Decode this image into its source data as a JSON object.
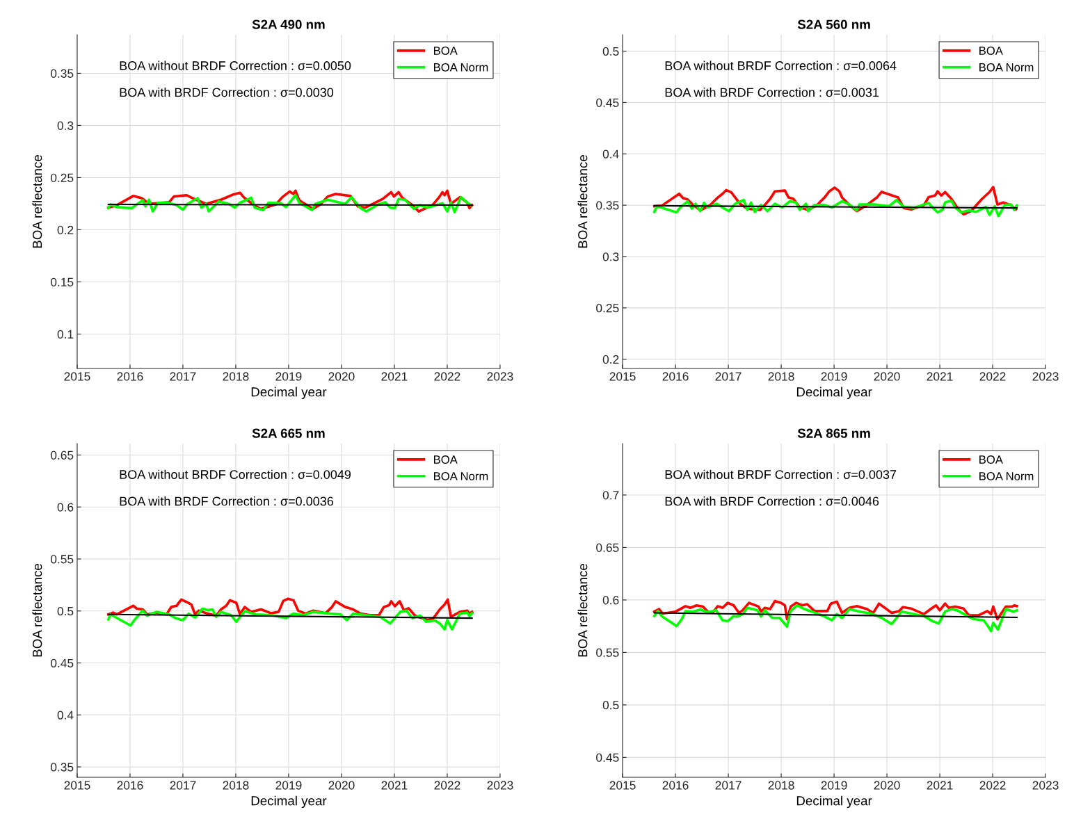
{
  "chart_data": [
    {
      "type": "line",
      "title": "S2A 490 nm",
      "xlabel": "Decimal year",
      "ylabel": "BOA reflectance",
      "xlim": [
        2015,
        2023
      ],
      "xticks": [
        2015,
        2016,
        2017,
        2018,
        2019,
        2020,
        2021,
        2022,
        2023
      ],
      "ylim": [
        0.067,
        0.387
      ],
      "yticks": [
        0.1,
        0.15,
        0.2,
        0.25,
        0.3,
        0.35
      ],
      "grid": true,
      "legend": "top right",
      "annotations": [
        "BOA without BRDF Correction : σ=0.0050",
        "BOA with BRDF Correction : σ=0.0030"
      ],
      "series": [
        {
          "name": "BOA",
          "color": "#ff0000",
          "x": [
            2015.59,
            2015.75,
            2016.06,
            2016.22,
            2016.36,
            2016.74,
            2016.83,
            2016.97,
            2017.07,
            2017.25,
            2017.44,
            2017.72,
            2017.94,
            2018.08,
            2018.15,
            2018.31,
            2018.47,
            2018.76,
            2018.88,
            2019.02,
            2019.09,
            2019.13,
            2019.2,
            2019.46,
            2019.6,
            2019.74,
            2019.89,
            2020.17,
            2020.31,
            2020.45,
            2020.78,
            2020.94,
            2020.99,
            2021.08,
            2021.15,
            2021.34,
            2021.46,
            2021.72,
            2021.84,
            2021.91,
            2021.95,
            2022.0,
            2022.07,
            2022.24,
            2022.38,
            2022.42,
            2022.47
          ],
          "values": [
            0.2212,
            0.2236,
            0.2324,
            0.2303,
            0.2248,
            0.2264,
            0.2319,
            0.2326,
            0.2331,
            0.2288,
            0.2248,
            0.2288,
            0.2336,
            0.2355,
            0.2312,
            0.2248,
            0.22,
            0.2243,
            0.2312,
            0.2367,
            0.2343,
            0.2374,
            0.2283,
            0.22,
            0.2243,
            0.2319,
            0.2343,
            0.2324,
            0.2224,
            0.2212,
            0.2295,
            0.236,
            0.2319,
            0.236,
            0.2307,
            0.2236,
            0.2176,
            0.2236,
            0.2307,
            0.236,
            0.2331,
            0.2374,
            0.2248,
            0.2312,
            0.226,
            0.2207,
            0.2236
          ]
        },
        {
          "name": "BOA Norm",
          "color": "#00ff00",
          "x": [
            2015.59,
            2015.63,
            2015.75,
            2016.03,
            2016.24,
            2016.29,
            2016.36,
            2016.43,
            2016.53,
            2016.71,
            2016.88,
            2017.0,
            2017.09,
            2017.28,
            2017.35,
            2017.44,
            2017.49,
            2017.68,
            2017.87,
            2017.98,
            2018.08,
            2018.22,
            2018.29,
            2018.36,
            2018.52,
            2018.62,
            2018.85,
            2018.95,
            2019.13,
            2019.2,
            2019.44,
            2019.51,
            2019.74,
            2020.07,
            2020.19,
            2020.36,
            2020.47,
            2020.69,
            2020.83,
            2020.92,
            2021.01,
            2021.08,
            2021.2,
            2021.37,
            2021.48,
            2021.62,
            2021.91,
            2022.0,
            2022.07,
            2022.14,
            2022.26,
            2022.38,
            2022.45
          ],
          "values": [
            0.2207,
            0.2243,
            0.2217,
            0.2207,
            0.2283,
            0.2224,
            0.2288,
            0.2176,
            0.226,
            0.226,
            0.2236,
            0.2193,
            0.2248,
            0.2303,
            0.2212,
            0.2248,
            0.2176,
            0.2272,
            0.2248,
            0.2212,
            0.226,
            0.2288,
            0.2307,
            0.2212,
            0.2188,
            0.226,
            0.2255,
            0.2217,
            0.2331,
            0.226,
            0.2188,
            0.2248,
            0.2288,
            0.2248,
            0.2312,
            0.2207,
            0.2176,
            0.2241,
            0.2264,
            0.2212,
            0.2207,
            0.2295,
            0.2288,
            0.22,
            0.2236,
            0.2212,
            0.2255,
            0.2176,
            0.226,
            0.2169,
            0.2312,
            0.226,
            0.2236
          ]
        },
        {
          "color": "#000000",
          "x": [
            2015.59,
            2022.47
          ],
          "values": [
            0.2243,
            0.2236
          ]
        }
      ]
    },
    {
      "type": "line",
      "title": "S2A 560 nm",
      "xlabel": "Decimal year",
      "ylabel": "BOA reflectance",
      "xlim": [
        2015,
        2023
      ],
      "xticks": [
        2015,
        2016,
        2017,
        2018,
        2019,
        2020,
        2021,
        2022,
        2023
      ],
      "ylim": [
        0.191,
        0.516
      ],
      "yticks": [
        0.2,
        0.25,
        0.3,
        0.35,
        0.4,
        0.45,
        0.5
      ],
      "grid": true,
      "legend": "top right",
      "annotations": [
        "BOA without BRDF Correction : σ=0.0064",
        "BOA with BRDF Correction : σ=0.0031"
      ],
      "series": [
        {
          "name": "BOA",
          "color": "#ff0000",
          "x": [
            2015.6,
            2015.74,
            2016.07,
            2016.14,
            2016.23,
            2016.31,
            2016.47,
            2016.66,
            2016.8,
            2016.89,
            2016.96,
            2017.06,
            2017.13,
            2017.22,
            2017.36,
            2017.6,
            2017.69,
            2017.79,
            2017.88,
            2018.07,
            2018.14,
            2018.23,
            2018.35,
            2018.51,
            2018.68,
            2018.82,
            2018.91,
            2019.01,
            2019.1,
            2019.15,
            2019.29,
            2019.43,
            2019.62,
            2019.81,
            2019.9,
            2020.21,
            2020.32,
            2020.46,
            2020.7,
            2020.79,
            2020.91,
            2020.96,
            2021.03,
            2021.1,
            2021.22,
            2021.36,
            2021.45,
            2021.59,
            2021.8,
            2021.94,
            2022.01,
            2022.09,
            2022.2,
            2022.34,
            2022.44
          ],
          "values": [
            0.349,
            0.3495,
            0.3611,
            0.357,
            0.3555,
            0.3514,
            0.3449,
            0.3502,
            0.3575,
            0.3611,
            0.3647,
            0.3623,
            0.3575,
            0.3514,
            0.3466,
            0.3454,
            0.3502,
            0.3562,
            0.3635,
            0.3642,
            0.3575,
            0.3562,
            0.3478,
            0.3454,
            0.3502,
            0.3575,
            0.3635,
            0.3671,
            0.3635,
            0.3575,
            0.3502,
            0.3442,
            0.3502,
            0.3575,
            0.363,
            0.3575,
            0.3473,
            0.3459,
            0.3502,
            0.3579,
            0.3594,
            0.3635,
            0.3594,
            0.3628,
            0.3562,
            0.3454,
            0.3411,
            0.3442,
            0.3562,
            0.3628,
            0.3676,
            0.3507,
            0.3526,
            0.3502,
            0.3459
          ]
        },
        {
          "name": "BOA Norm",
          "color": "#00ff00",
          "x": [
            2015.6,
            2015.65,
            2016.02,
            2016.09,
            2016.23,
            2016.31,
            2016.38,
            2016.47,
            2016.54,
            2016.61,
            2016.78,
            2016.89,
            2017.01,
            2017.13,
            2017.29,
            2017.36,
            2017.43,
            2017.5,
            2017.62,
            2017.74,
            2017.88,
            2018.02,
            2018.16,
            2018.28,
            2018.35,
            2018.47,
            2018.51,
            2018.63,
            2018.82,
            2018.96,
            2019.15,
            2019.29,
            2019.43,
            2019.48,
            2019.76,
            2020.04,
            2020.18,
            2020.32,
            2020.51,
            2020.79,
            2020.86,
            2020.96,
            2021.05,
            2021.1,
            2021.22,
            2021.29,
            2021.4,
            2021.55,
            2021.69,
            2021.87,
            2021.94,
            2022.04,
            2022.11,
            2022.23,
            2022.34,
            2022.41,
            2022.46
          ],
          "values": [
            0.3435,
            0.349,
            0.343,
            0.3478,
            0.3538,
            0.3466,
            0.3514,
            0.3442,
            0.3522,
            0.3478,
            0.3514,
            0.3478,
            0.3442,
            0.3514,
            0.355,
            0.3454,
            0.3526,
            0.3435,
            0.3502,
            0.3442,
            0.3514,
            0.3478,
            0.3538,
            0.3526,
            0.3454,
            0.3514,
            0.3442,
            0.3502,
            0.3502,
            0.3478,
            0.3538,
            0.3507,
            0.3449,
            0.3507,
            0.3507,
            0.349,
            0.355,
            0.3483,
            0.3473,
            0.3522,
            0.3478,
            0.343,
            0.3454,
            0.3526,
            0.3545,
            0.3478,
            0.343,
            0.3449,
            0.3435,
            0.3483,
            0.3406,
            0.349,
            0.3394,
            0.3502,
            0.3507,
            0.3454,
            0.3497
          ]
        },
        {
          "color": "#000000",
          "x": [
            2015.6,
            2022.46
          ],
          "values": [
            0.3495,
            0.3473
          ]
        }
      ]
    },
    {
      "type": "line",
      "title": "S2A 665 nm",
      "xlabel": "Decimal year",
      "ylabel": "BOA reflectance",
      "xlim": [
        2015,
        2023
      ],
      "xticks": [
        2015,
        2016,
        2017,
        2018,
        2019,
        2020,
        2021,
        2022,
        2023
      ],
      "ylim": [
        0.34,
        0.661
      ],
      "yticks": [
        0.35,
        0.4,
        0.45,
        0.5,
        0.55,
        0.6,
        0.65
      ],
      "grid": true,
      "legend": "top right",
      "annotations": [
        "BOA without BRDF Correction : σ=0.0049",
        "BOA with BRDF Correction : σ=0.0036"
      ],
      "series": [
        {
          "name": "BOA",
          "color": "#ff0000",
          "x": [
            2015.59,
            2015.68,
            2015.75,
            2016.06,
            2016.13,
            2016.24,
            2016.32,
            2016.5,
            2016.69,
            2016.78,
            2016.88,
            2016.97,
            2017.07,
            2017.16,
            2017.23,
            2017.3,
            2017.44,
            2017.63,
            2017.72,
            2017.82,
            2017.89,
            2018.01,
            2018.08,
            2018.17,
            2018.29,
            2018.48,
            2018.66,
            2018.81,
            2018.9,
            2018.99,
            2019.09,
            2019.18,
            2019.32,
            2019.46,
            2019.7,
            2019.82,
            2019.89,
            2020.07,
            2020.22,
            2020.36,
            2020.54,
            2020.71,
            2020.8,
            2020.9,
            2020.94,
            2021.01,
            2021.1,
            2021.18,
            2021.27,
            2021.39,
            2021.63,
            2021.74,
            2021.86,
            2021.95,
            2022.01,
            2022.07,
            2022.24,
            2022.38,
            2022.42,
            2022.47
          ],
          "values": [
            0.4967,
            0.4984,
            0.4967,
            0.505,
            0.5022,
            0.5015,
            0.4967,
            0.4984,
            0.4967,
            0.5038,
            0.505,
            0.511,
            0.5086,
            0.5062,
            0.4967,
            0.5003,
            0.4979,
            0.4955,
            0.5015,
            0.505,
            0.5103,
            0.5079,
            0.4967,
            0.5038,
            0.4991,
            0.5015,
            0.4979,
            0.4991,
            0.5098,
            0.5117,
            0.5103,
            0.5003,
            0.4974,
            0.5003,
            0.4979,
            0.5038,
            0.5093,
            0.5038,
            0.5015,
            0.4974,
            0.496,
            0.496,
            0.5038,
            0.5055,
            0.5093,
            0.5045,
            0.5093,
            0.5007,
            0.5026,
            0.4955,
            0.4912,
            0.4931,
            0.5015,
            0.5062,
            0.511,
            0.4943,
            0.4991,
            0.5003,
            0.4974,
            0.4991
          ]
        },
        {
          "name": "BOA Norm",
          "color": "#00ff00",
          "x": [
            2015.59,
            2015.63,
            2016.01,
            2016.08,
            2016.24,
            2016.32,
            2016.5,
            2016.74,
            2016.86,
            2017.0,
            2017.11,
            2017.23,
            2017.37,
            2017.47,
            2017.56,
            2017.63,
            2017.72,
            2017.91,
            2018.01,
            2018.1,
            2018.17,
            2018.38,
            2018.66,
            2018.95,
            2019.09,
            2019.28,
            2019.46,
            2019.79,
            2019.98,
            2020.1,
            2020.22,
            2020.45,
            2020.73,
            2020.92,
            2021.01,
            2021.11,
            2021.23,
            2021.34,
            2021.49,
            2021.6,
            2021.77,
            2021.86,
            2021.95,
            2022.0,
            2022.09,
            2022.24,
            2022.38,
            2022.42,
            2022.47
          ],
          "values": [
            0.4919,
            0.4967,
            0.486,
            0.4912,
            0.5003,
            0.4955,
            0.4991,
            0.4967,
            0.4931,
            0.4912,
            0.4974,
            0.4936,
            0.5022,
            0.5008,
            0.5015,
            0.4943,
            0.4991,
            0.496,
            0.4896,
            0.4955,
            0.4998,
            0.4967,
            0.496,
            0.4931,
            0.4974,
            0.496,
            0.4991,
            0.4974,
            0.4967,
            0.4912,
            0.4974,
            0.496,
            0.4943,
            0.4879,
            0.4931,
            0.4991,
            0.5003,
            0.4931,
            0.4955,
            0.4896,
            0.4908,
            0.4879,
            0.4824,
            0.4912,
            0.4824,
            0.4974,
            0.4984,
            0.495,
            0.4979
          ]
        },
        {
          "color": "#000000",
          "x": [
            2015.59,
            2022.47
          ],
          "values": [
            0.4967,
            0.4931
          ]
        }
      ]
    },
    {
      "type": "line",
      "title": "S2A 865 nm",
      "xlabel": "Decimal year",
      "ylabel": "BOA reflectance",
      "xlim": [
        2015,
        2023
      ],
      "xticks": [
        2015,
        2016,
        2017,
        2018,
        2019,
        2020,
        2021,
        2022,
        2023
      ],
      "ylim": [
        0.431,
        0.749
      ],
      "yticks": [
        0.45,
        0.5,
        0.55,
        0.6,
        0.65,
        0.7
      ],
      "grid": true,
      "legend": "top right",
      "annotations": [
        "BOA without BRDF Correction : σ=0.0037",
        "BOA with BRDF Correction : σ=0.0046"
      ],
      "series": [
        {
          "name": "BOA",
          "color": "#ff0000",
          "x": [
            2015.6,
            2015.69,
            2015.76,
            2016.0,
            2016.09,
            2016.19,
            2016.28,
            2016.4,
            2016.52,
            2016.61,
            2016.7,
            2016.8,
            2016.89,
            2016.99,
            2017.1,
            2017.2,
            2017.27,
            2017.39,
            2017.57,
            2017.62,
            2017.69,
            2017.79,
            2017.88,
            2018.0,
            2018.07,
            2018.11,
            2018.18,
            2018.28,
            2018.4,
            2018.49,
            2018.63,
            2018.87,
            2018.94,
            2019.05,
            2019.15,
            2019.29,
            2019.43,
            2019.62,
            2019.74,
            2019.85,
            2020.09,
            2020.23,
            2020.3,
            2020.46,
            2020.7,
            2020.84,
            2020.93,
            2021.0,
            2021.1,
            2021.17,
            2021.29,
            2021.45,
            2021.55,
            2021.73,
            2021.9,
            2021.97,
            2022.01,
            2022.09,
            2022.25,
            2022.37,
            2022.41,
            2022.46
          ],
          "values": [
            0.5889,
            0.5913,
            0.587,
            0.5889,
            0.5913,
            0.5941,
            0.5925,
            0.5948,
            0.5937,
            0.5889,
            0.5877,
            0.5941,
            0.5925,
            0.5972,
            0.5948,
            0.5877,
            0.5901,
            0.5972,
            0.5937,
            0.5889,
            0.5925,
            0.5913,
            0.5989,
            0.5972,
            0.5948,
            0.5817,
            0.5937,
            0.5972,
            0.5948,
            0.596,
            0.5894,
            0.5894,
            0.5965,
            0.5984,
            0.5877,
            0.5925,
            0.5941,
            0.5913,
            0.5877,
            0.5965,
            0.5877,
            0.5894,
            0.5932,
            0.5918,
            0.5865,
            0.5918,
            0.5948,
            0.5901,
            0.5965,
            0.5925,
            0.5937,
            0.5918,
            0.5853,
            0.5853,
            0.5894,
            0.5865,
            0.5937,
            0.5817,
            0.5937,
            0.5937,
            0.5948,
            0.5941
          ]
        },
        {
          "name": "BOA Norm",
          "color": "#00ff00",
          "x": [
            2015.6,
            2015.67,
            2015.74,
            2016.02,
            2016.12,
            2016.19,
            2016.33,
            2016.47,
            2016.61,
            2016.77,
            2016.89,
            2016.99,
            2017.1,
            2017.17,
            2017.27,
            2017.36,
            2017.55,
            2017.62,
            2017.69,
            2017.83,
            2017.97,
            2018.11,
            2018.18,
            2018.3,
            2018.44,
            2018.58,
            2018.82,
            2018.96,
            2019.05,
            2019.15,
            2019.29,
            2019.48,
            2019.71,
            2019.9,
            2020.09,
            2020.28,
            2020.46,
            2020.7,
            2020.86,
            2020.98,
            2021.1,
            2021.22,
            2021.33,
            2021.5,
            2021.64,
            2021.83,
            2021.9,
            2021.97,
            2022.01,
            2022.1,
            2022.25,
            2022.39,
            2022.46
          ],
          "values": [
            0.5846,
            0.5894,
            0.5846,
            0.5751,
            0.5817,
            0.5894,
            0.5889,
            0.5908,
            0.5884,
            0.5901,
            0.5806,
            0.5798,
            0.5846,
            0.5841,
            0.5865,
            0.5925,
            0.5901,
            0.5841,
            0.5901,
            0.5829,
            0.5829,
            0.5746,
            0.5894,
            0.5948,
            0.5913,
            0.5889,
            0.5841,
            0.5806,
            0.5865,
            0.5829,
            0.5913,
            0.5889,
            0.587,
            0.5829,
            0.577,
            0.5889,
            0.587,
            0.5846,
            0.5798,
            0.5775,
            0.5889,
            0.5913,
            0.5901,
            0.5853,
            0.5817,
            0.5806,
            0.5758,
            0.5703,
            0.5782,
            0.5718,
            0.5913,
            0.5889,
            0.5901
          ]
        },
        {
          "color": "#000000",
          "x": [
            2015.6,
            2022.46
          ],
          "values": [
            0.5877,
            0.5834
          ]
        }
      ]
    }
  ]
}
